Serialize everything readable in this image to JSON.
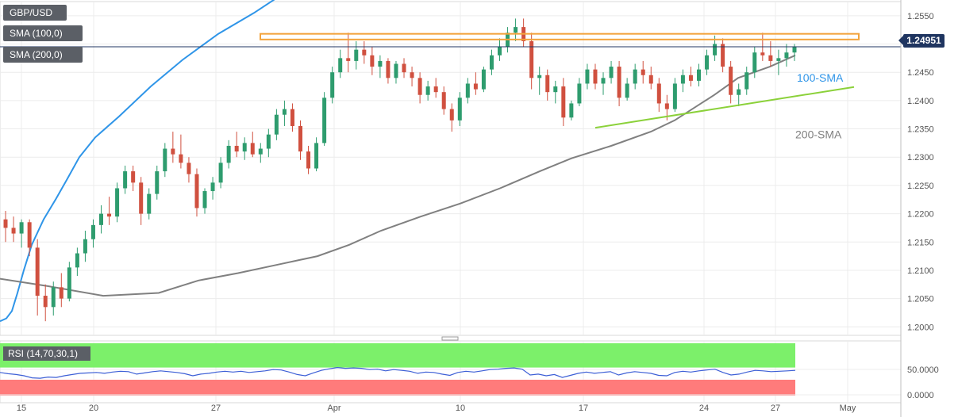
{
  "legends": {
    "pair": "GBP/USD",
    "sma100": "SMA (100,0)",
    "sma200": "SMA (200,0)",
    "rsi": "RSI (14,70,30,1)"
  },
  "current_price": "1.24951",
  "colors": {
    "up": "#2e9c6e",
    "down": "#d0503f",
    "sma100": "#2f95e8",
    "sma200": "#808080",
    "trendline": "#8bd13a",
    "resistance": "#f3a33b",
    "rsi_line": "#3d5fd6",
    "rsi_overbought_zone": "#7cf06a",
    "rsi_oversold_zone": "#ff7b7b",
    "price_tag": "#1f3560"
  },
  "chart_data": [
    {
      "type": "candlestick",
      "title": "GBP/USD",
      "x_ticks": [
        "15",
        "20",
        "27",
        "Apr",
        "10",
        "17",
        "24",
        "27",
        "May"
      ],
      "y_ticks": [
        "1.2550",
        "1.2500",
        "1.2450",
        "1.2400",
        "1.2350",
        "1.2300",
        "1.2250",
        "1.2200",
        "1.2150",
        "1.2100",
        "1.2050",
        "1.2000"
      ],
      "ylim": [
        1.1985,
        1.2575
      ],
      "grid": true,
      "current_price": 1.24951,
      "annotations": [
        {
          "text": "100-SMA",
          "color": "#2f95e8"
        },
        {
          "text": "200-SMA",
          "color": "#808080"
        }
      ],
      "resistance_zone": [
        1.2508,
        1.2518
      ],
      "support_trendline": [
        [
          18.0,
          1.2352
        ],
        [
          34.0,
          1.2424
        ]
      ],
      "candles": [
        [
          1.219,
          1.2205,
          1.215,
          1.2175
        ],
        [
          1.2175,
          1.2195,
          1.215,
          1.2165
        ],
        [
          1.2165,
          1.219,
          1.214,
          1.2185
        ],
        [
          1.2185,
          1.219,
          1.2125,
          1.214
        ],
        [
          1.214,
          1.2155,
          1.202,
          1.2055
        ],
        [
          1.2055,
          1.2075,
          1.201,
          1.2035
        ],
        [
          1.2035,
          1.208,
          1.202,
          1.207
        ],
        [
          1.207,
          1.2095,
          1.2035,
          1.205
        ],
        [
          1.205,
          1.2115,
          1.2045,
          1.2105
        ],
        [
          1.2105,
          1.214,
          1.209,
          1.213
        ],
        [
          1.213,
          1.217,
          1.2115,
          1.2155
        ],
        [
          1.2155,
          1.219,
          1.214,
          1.218
        ],
        [
          1.218,
          1.2215,
          1.2165,
          1.22
        ],
        [
          1.22,
          1.223,
          1.218,
          1.2195
        ],
        [
          1.2195,
          1.2255,
          1.2185,
          1.2245
        ],
        [
          1.2245,
          1.2285,
          1.2235,
          1.2275
        ],
        [
          1.2275,
          1.2285,
          1.224,
          1.2255
        ],
        [
          1.2255,
          1.2265,
          1.218,
          1.22
        ],
        [
          1.22,
          1.2245,
          1.219,
          1.2235
        ],
        [
          1.2235,
          1.2285,
          1.2225,
          1.2275
        ],
        [
          1.2275,
          1.2325,
          1.2265,
          1.2315
        ],
        [
          1.2315,
          1.2345,
          1.229,
          1.2305
        ],
        [
          1.2305,
          1.234,
          1.228,
          1.229
        ],
        [
          1.229,
          1.23,
          1.2255,
          1.227
        ],
        [
          1.227,
          1.228,
          1.2195,
          1.221
        ],
        [
          1.221,
          1.2245,
          1.22,
          1.224
        ],
        [
          1.224,
          1.2265,
          1.2225,
          1.2255
        ],
        [
          1.2255,
          1.23,
          1.2245,
          1.229
        ],
        [
          1.229,
          1.233,
          1.228,
          1.232
        ],
        [
          1.232,
          1.2345,
          1.23,
          1.231
        ],
        [
          1.231,
          1.2335,
          1.2295,
          1.2325
        ],
        [
          1.2325,
          1.2345,
          1.23,
          1.2305
        ],
        [
          1.2305,
          1.2325,
          1.229,
          1.2315
        ],
        [
          1.2315,
          1.235,
          1.23,
          1.234
        ],
        [
          1.234,
          1.2385,
          1.233,
          1.2375
        ],
        [
          1.2375,
          1.24,
          1.2355,
          1.2385
        ],
        [
          1.2385,
          1.2395,
          1.2345,
          1.2355
        ],
        [
          1.2355,
          1.2365,
          1.2295,
          1.231
        ],
        [
          1.231,
          1.232,
          1.227,
          1.228
        ],
        [
          1.228,
          1.2335,
          1.2275,
          1.2325
        ],
        [
          1.2325,
          1.2415,
          1.232,
          1.2405
        ],
        [
          1.2405,
          1.246,
          1.2395,
          1.245
        ],
        [
          1.245,
          1.249,
          1.244,
          1.2475
        ],
        [
          1.2475,
          1.252,
          1.245,
          1.247
        ],
        [
          1.247,
          1.2505,
          1.2455,
          1.249
        ],
        [
          1.249,
          1.2505,
          1.2465,
          1.248
        ],
        [
          1.248,
          1.2495,
          1.2445,
          1.246
        ],
        [
          1.246,
          1.248,
          1.244,
          1.247
        ],
        [
          1.247,
          1.2475,
          1.243,
          1.244
        ],
        [
          1.244,
          1.247,
          1.243,
          1.2465
        ],
        [
          1.2465,
          1.2475,
          1.244,
          1.245
        ],
        [
          1.245,
          1.246,
          1.2425,
          1.244
        ],
        [
          1.244,
          1.245,
          1.2395,
          1.241
        ],
        [
          1.241,
          1.2435,
          1.24,
          1.2425
        ],
        [
          1.2425,
          1.244,
          1.2405,
          1.2415
        ],
        [
          1.2415,
          1.2425,
          1.2375,
          1.2385
        ],
        [
          1.2385,
          1.2395,
          1.2345,
          1.2365
        ],
        [
          1.2365,
          1.2415,
          1.2355,
          1.2405
        ],
        [
          1.2405,
          1.244,
          1.2395,
          1.243
        ],
        [
          1.243,
          1.245,
          1.241,
          1.242
        ],
        [
          1.242,
          1.246,
          1.2415,
          1.2455
        ],
        [
          1.2455,
          1.249,
          1.2445,
          1.248
        ],
        [
          1.248,
          1.251,
          1.247,
          1.2495
        ],
        [
          1.2495,
          1.253,
          1.2485,
          1.252
        ],
        [
          1.252,
          1.2545,
          1.2505,
          1.253
        ],
        [
          1.253,
          1.2545,
          1.2495,
          1.2505
        ],
        [
          1.2505,
          1.252,
          1.242,
          1.244
        ],
        [
          1.244,
          1.246,
          1.241,
          1.2445
        ],
        [
          1.2445,
          1.2455,
          1.24,
          1.2415
        ],
        [
          1.2415,
          1.2435,
          1.2395,
          1.2425
        ],
        [
          1.2425,
          1.244,
          1.2355,
          1.237
        ],
        [
          1.237,
          1.24,
          1.2365,
          1.2395
        ],
        [
          1.2395,
          1.244,
          1.239,
          1.243
        ],
        [
          1.243,
          1.2465,
          1.242,
          1.2455
        ],
        [
          1.2455,
          1.2465,
          1.242,
          1.243
        ],
        [
          1.243,
          1.245,
          1.241,
          1.244
        ],
        [
          1.244,
          1.247,
          1.243,
          1.246
        ],
        [
          1.246,
          1.247,
          1.239,
          1.2405
        ],
        [
          1.2405,
          1.244,
          1.24,
          1.243
        ],
        [
          1.243,
          1.2465,
          1.242,
          1.2455
        ],
        [
          1.2455,
          1.247,
          1.243,
          1.2445
        ],
        [
          1.2445,
          1.246,
          1.242,
          1.243
        ],
        [
          1.243,
          1.244,
          1.238,
          1.2395
        ],
        [
          1.2395,
          1.241,
          1.2365,
          1.2385
        ],
        [
          1.2385,
          1.244,
          1.238,
          1.243
        ],
        [
          1.243,
          1.2455,
          1.2415,
          1.2445
        ],
        [
          1.2445,
          1.246,
          1.2425,
          1.2435
        ],
        [
          1.2435,
          1.2465,
          1.2425,
          1.2455
        ],
        [
          1.2455,
          1.249,
          1.2445,
          1.248
        ],
        [
          1.248,
          1.2515,
          1.247,
          1.25
        ],
        [
          1.25,
          1.251,
          1.245,
          1.246
        ],
        [
          1.246,
          1.247,
          1.2395,
          1.241
        ],
        [
          1.241,
          1.243,
          1.239,
          1.242
        ],
        [
          1.242,
          1.246,
          1.241,
          1.245
        ],
        [
          1.245,
          1.2495,
          1.244,
          1.2485
        ],
        [
          1.2485,
          1.252,
          1.247,
          1.248
        ],
        [
          1.248,
          1.2505,
          1.246,
          1.247
        ],
        [
          1.247,
          1.249,
          1.2445,
          1.2475
        ],
        [
          1.2475,
          1.25,
          1.246,
          1.2485
        ],
        [
          1.2485,
          1.25,
          1.247,
          1.2495
        ]
      ],
      "sma100": [
        [
          0,
          1.201
        ],
        [
          8,
          1.2015
        ],
        [
          15,
          1.2028
        ],
        [
          22,
          1.206
        ],
        [
          30,
          1.21
        ],
        [
          40,
          1.2145
        ],
        [
          55,
          1.219
        ],
        [
          70,
          1.2225
        ],
        [
          85,
          1.2262
        ],
        [
          100,
          1.23
        ],
        [
          120,
          1.2335
        ],
        [
          150,
          1.2372
        ],
        [
          190,
          1.2425
        ],
        [
          230,
          1.2472
        ],
        [
          275,
          1.2518
        ],
        [
          320,
          1.2555
        ],
        [
          360,
          1.2592
        ],
        [
          400,
          1.2635
        ],
        [
          430,
          1.2672
        ],
        [
          460,
          1.2708
        ],
        [
          490,
          1.274
        ],
        [
          520,
          1.277
        ],
        [
          560,
          1.281
        ],
        [
          600,
          1.2855
        ],
        [
          640,
          1.2878
        ],
        [
          670,
          1.29
        ],
        [
          700,
          1.2928
        ],
        [
          740,
          1.294
        ],
        [
          780,
          1.295
        ],
        [
          820,
          1.296
        ],
        [
          860,
          1.297
        ],
        [
          900,
          1.2985
        ],
        [
          930,
          1.3
        ],
        [
          960,
          1.3005
        ],
        [
          1002,
          1.301
        ]
      ],
      "sma200": [
        [
          0,
          1.2085
        ],
        [
          60,
          1.2072
        ],
        [
          130,
          1.2055
        ],
        [
          200,
          1.206
        ],
        [
          250,
          1.2082
        ],
        [
          300,
          1.2095
        ],
        [
          350,
          1.211
        ],
        [
          400,
          1.2125
        ],
        [
          440,
          1.2145
        ],
        [
          480,
          1.217
        ],
        [
          530,
          1.2195
        ],
        [
          580,
          1.2218
        ],
        [
          630,
          1.2245
        ],
        [
          680,
          1.2275
        ],
        [
          720,
          1.2298
        ],
        [
          770,
          1.232
        ],
        [
          820,
          1.2345
        ],
        [
          850,
          1.2365
        ],
        [
          900,
          1.241
        ],
        [
          930,
          1.244
        ],
        [
          970,
          1.246
        ],
        [
          1002,
          1.248
        ]
      ]
    },
    {
      "type": "line",
      "title": "RSI (14,70,30,1)",
      "y_ticks": [
        "50.0000",
        "0.0000"
      ],
      "ylim": [
        0,
        100
      ],
      "overbought": 70,
      "oversold": 30,
      "values": [
        58,
        55,
        53,
        50,
        45,
        44,
        47,
        46,
        50,
        53,
        56,
        57,
        58,
        56,
        59,
        61,
        60,
        54,
        57,
        60,
        62,
        60,
        58,
        55,
        50,
        54,
        56,
        59,
        61,
        59,
        61,
        58,
        60,
        62,
        65,
        64,
        59,
        53,
        50,
        57,
        63,
        67,
        70,
        68,
        69,
        68,
        65,
        66,
        62,
        65,
        63,
        61,
        56,
        59,
        58,
        54,
        51,
        58,
        61,
        59,
        62,
        65,
        66,
        68,
        69,
        66,
        52,
        54,
        50,
        53,
        46,
        51,
        56,
        59,
        56,
        58,
        60,
        52,
        57,
        60,
        58,
        56,
        51,
        50,
        58,
        61,
        59,
        62,
        64,
        66,
        58,
        52,
        54,
        59,
        63,
        62,
        60,
        61,
        62,
        63
      ]
    }
  ]
}
